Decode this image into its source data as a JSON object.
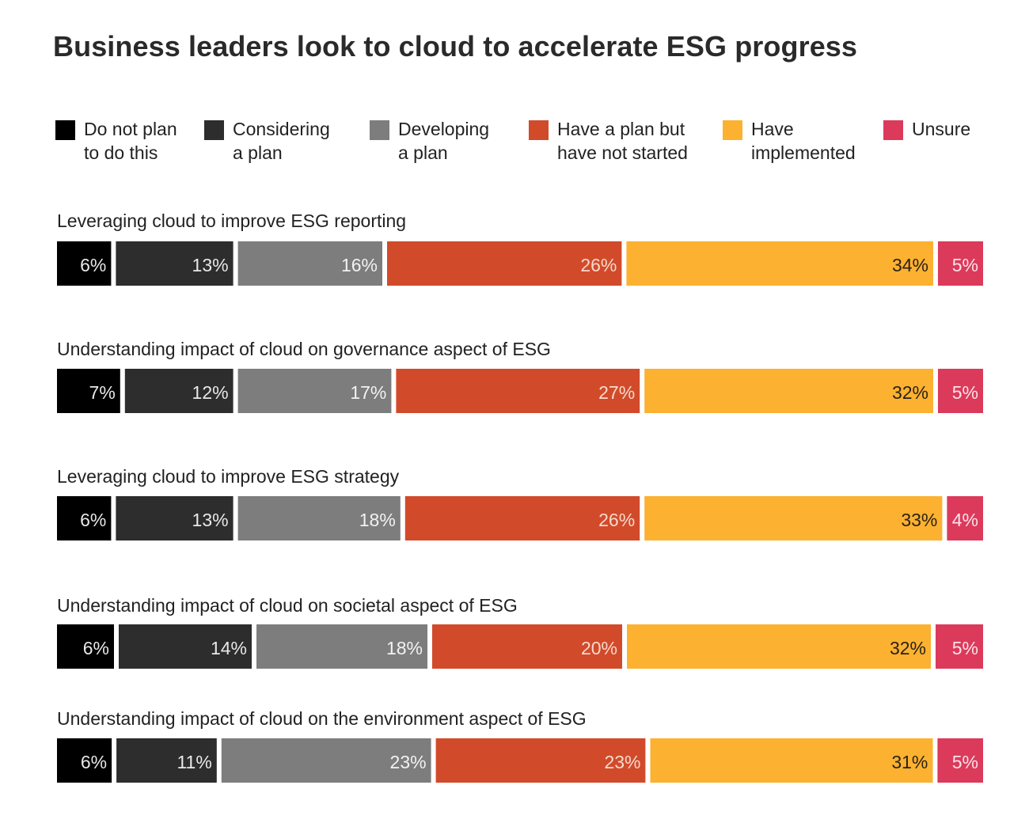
{
  "chart_data": {
    "type": "bar",
    "orientation": "horizontal-stacked",
    "title": "Business leaders look to cloud to accelerate ESG progress",
    "xlabel": "",
    "ylabel": "",
    "unit": "%",
    "legend_position": "top",
    "grid": false,
    "categories": [
      "Leveraging cloud to improve ESG reporting",
      "Understanding impact of cloud on governance aspect of ESG",
      "Leveraging cloud to improve ESG strategy",
      "Understanding impact of cloud on societal aspect of ESG",
      "Understanding impact of cloud on the environment aspect of ESG"
    ],
    "series": [
      {
        "name": "Do not plan\nto do this",
        "color": "#000000",
        "label_color": "#e8e8e8",
        "values": [
          6,
          7,
          6,
          6,
          6
        ]
      },
      {
        "name": "Considering\na plan",
        "color": "#2d2d2d",
        "label_color": "#e8e8e8",
        "values": [
          13,
          12,
          13,
          14,
          11
        ]
      },
      {
        "name": "Developing\na plan",
        "color": "#7d7d7d",
        "label_color": "#f2f2f2",
        "values": [
          16,
          17,
          18,
          18,
          23
        ]
      },
      {
        "name": "Have a plan but\nhave not started",
        "color": "#d14b2b",
        "label_color": "#f7d9cc",
        "values": [
          26,
          27,
          26,
          20,
          23
        ]
      },
      {
        "name": "Have\nimplemented",
        "color": "#fcb131",
        "label_color": "#2a2215",
        "values": [
          34,
          32,
          33,
          32,
          31
        ]
      },
      {
        "name": "Unsure",
        "color": "#dc3a5b",
        "label_color": "#fbe3e8",
        "values": [
          5,
          5,
          4,
          5,
          5
        ]
      }
    ]
  }
}
